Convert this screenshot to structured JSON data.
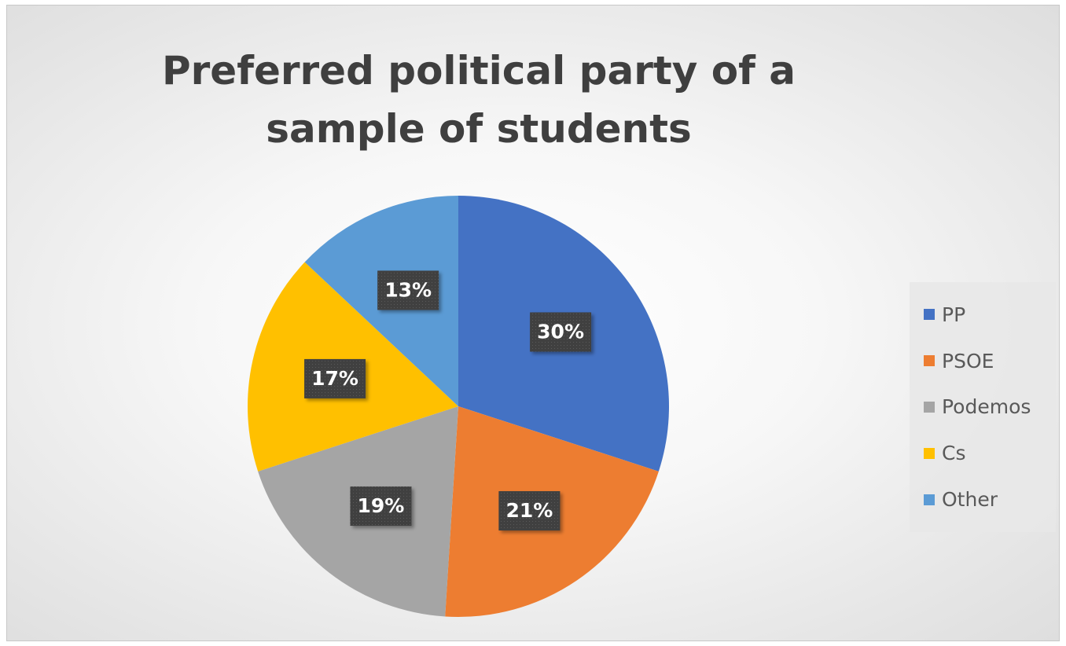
{
  "chart_data": {
    "type": "pie",
    "title": "Preferred political party of a sample of students",
    "categories": [
      "PP",
      "PSOE",
      "Podemos",
      "Cs",
      "Other"
    ],
    "values": [
      30,
      21,
      19,
      17,
      13
    ],
    "labels": [
      "30%",
      "21%",
      "19%",
      "17%",
      "13%"
    ],
    "colors": [
      "#4472C4",
      "#ED7D31",
      "#A5A5A5",
      "#FFC000",
      "#5B9BD5"
    ],
    "legend_position": "right"
  }
}
